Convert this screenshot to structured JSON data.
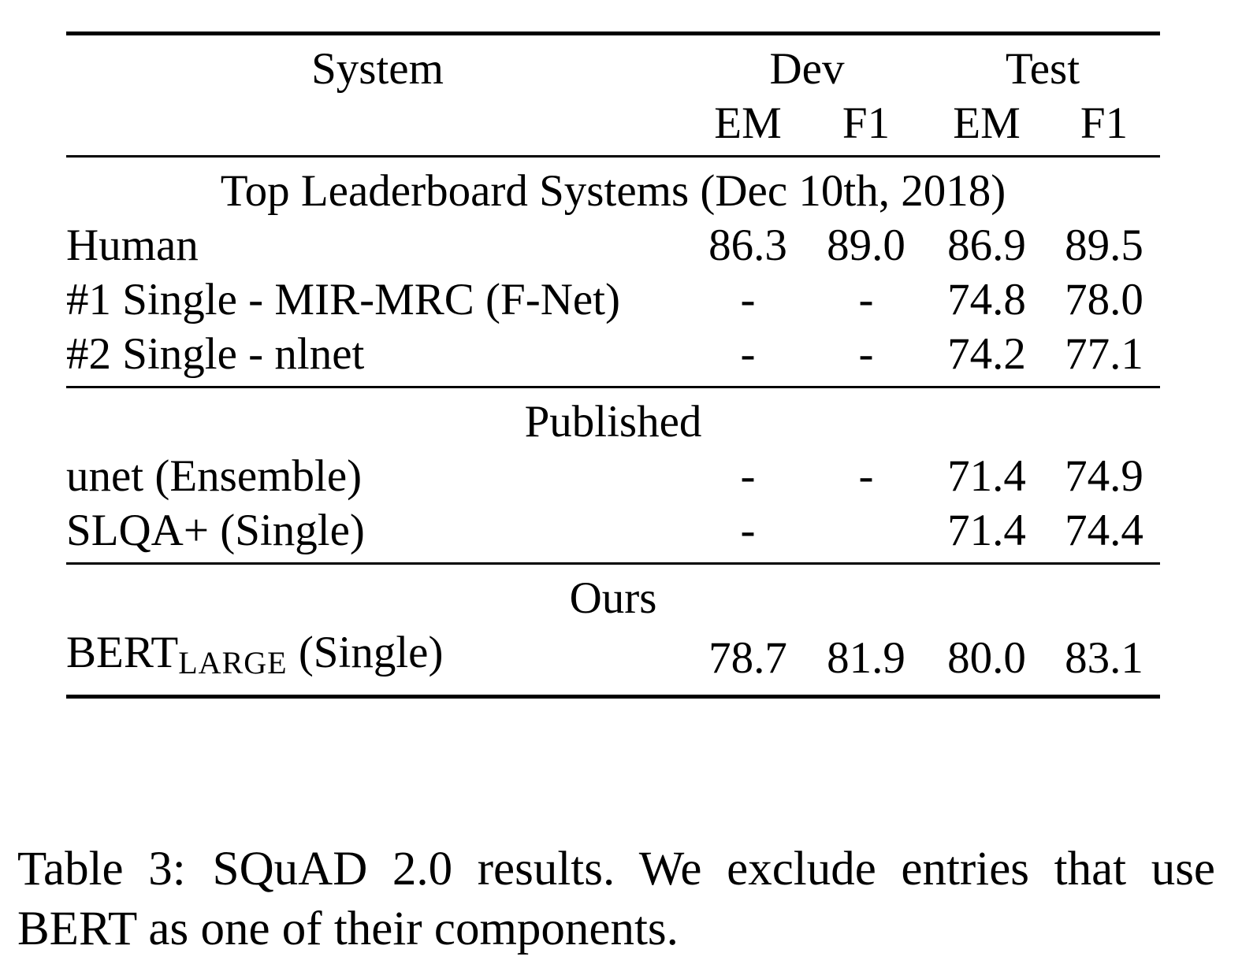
{
  "table": {
    "header": {
      "system": "System",
      "dev": "Dev",
      "test": "Test",
      "dev_em": "EM",
      "dev_f1": "F1",
      "test_em": "EM",
      "test_f1": "F1"
    },
    "sections": [
      {
        "title": "Top Leaderboard Systems (Dec 10th, 2018)",
        "rows": [
          {
            "system": "Human",
            "dev_em": "86.3",
            "dev_f1": "89.0",
            "test_em": "86.9",
            "test_f1": "89.5"
          },
          {
            "system": "#1 Single - MIR-MRC (F-Net)",
            "dev_em": "-",
            "dev_f1": "-",
            "test_em": "74.8",
            "test_f1": "78.0"
          },
          {
            "system": "#2 Single - nlnet",
            "dev_em": "-",
            "dev_f1": "-",
            "test_em": "74.2",
            "test_f1": "77.1"
          }
        ]
      },
      {
        "title": "Published",
        "rows": [
          {
            "system": "unet (Ensemble)",
            "dev_em": "-",
            "dev_f1": "-",
            "test_em": "71.4",
            "test_f1": "74.9"
          },
          {
            "system": "SLQA+ (Single)",
            "dev_em": "-",
            "dev_f1": "",
            "test_em": "71.4",
            "test_f1": "74.4"
          }
        ]
      },
      {
        "title": "Ours",
        "rows": [
          {
            "system_main": "BERT",
            "system_sub": "LARGE",
            "system_suffix": " (Single)",
            "dev_em": "78.7",
            "dev_f1": "81.9",
            "test_em": "80.0",
            "test_f1": "83.1"
          }
        ]
      }
    ]
  },
  "caption": {
    "label": "Table 3:",
    "text": "SQuAD 2.0 results. We exclude entries that use BERT as one of their components."
  }
}
